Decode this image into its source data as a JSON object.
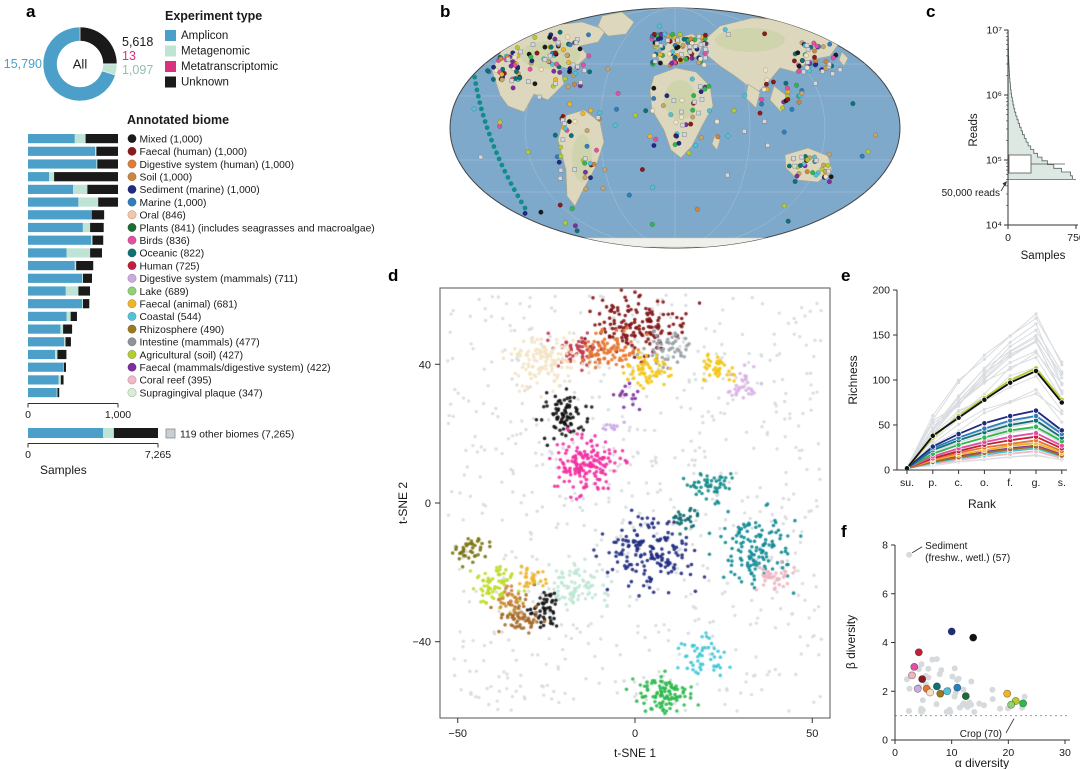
{
  "figure": {
    "panel_letters": {
      "a": "a",
      "b": "b",
      "c": "c",
      "d": "d",
      "e": "e",
      "f": "f"
    }
  },
  "chart_data": [
    {
      "id": "a-donut",
      "type": "pie",
      "center_label": "All",
      "legend_title": "Experiment type",
      "slices": [
        {
          "label": "Unknown",
          "value": 5618,
          "display": "5,618",
          "color": "#1a1a1a"
        },
        {
          "label": "Metatranscriptomic",
          "value": 13,
          "display": "13",
          "color": "#d6327e"
        },
        {
          "label": "Metagenomic",
          "value": 1097,
          "display": "1,097",
          "color": "#bfe3d5"
        },
        {
          "label": "Amplicon",
          "value": 15790,
          "display": "15,790",
          "color": "#4c9fc8"
        }
      ],
      "legend": [
        {
          "label": "Amplicon",
          "color": "#4c9fc8"
        },
        {
          "label": "Metagenomic",
          "color": "#bfe3d5"
        },
        {
          "label": "Metatranscriptomic",
          "color": "#d6327e"
        },
        {
          "label": "Unknown",
          "color": "#1a1a1a"
        }
      ]
    },
    {
      "id": "a-biomes",
      "type": "bar",
      "title": "Annotated biome",
      "stack_order": [
        "Amplicon",
        "Metagenomic",
        "Unknown"
      ],
      "stack_colors": [
        "#4c9fc8",
        "#bfe3d5",
        "#1a1a1a"
      ],
      "xlim": [
        0,
        1000
      ],
      "x_ticks": [
        "0",
        "1,000"
      ],
      "xlabel": "Samples",
      "items": [
        {
          "label": "Mixed (1,000)",
          "color": "#1a1a1a",
          "total": 1000,
          "segments": [
            520,
            120,
            360
          ]
        },
        {
          "label": "Faecal (human) (1,000)",
          "color": "#8b1a1a",
          "total": 1000,
          "segments": [
            745,
            15,
            240
          ]
        },
        {
          "label": "Digestive system (human) (1,000)",
          "color": "#e07b39",
          "total": 1000,
          "segments": [
            760,
            10,
            230
          ]
        },
        {
          "label": "Soil (1,000)",
          "color": "#cd853f",
          "total": 1000,
          "segments": [
            235,
            55,
            710
          ]
        },
        {
          "label": "Sediment (marine) (1,000)",
          "color": "#1f2a80",
          "total": 1000,
          "segments": [
            500,
            160,
            340
          ]
        },
        {
          "label": "Marine (1,000)",
          "color": "#2e7ebc",
          "total": 1000,
          "segments": [
            560,
            220,
            220
          ]
        },
        {
          "label": "Oral (846)",
          "color": "#f5c6a5",
          "total": 846,
          "segments": [
            700,
            6,
            140
          ]
        },
        {
          "label": "Plants (841) (includes seagrasses and macroalgae)",
          "color": "#1e6b35",
          "total": 841,
          "segments": [
            610,
            80,
            151
          ]
        },
        {
          "label": "Birds (836)",
          "color": "#e44fa3",
          "total": 836,
          "segments": [
            700,
            16,
            120
          ]
        },
        {
          "label": "Oceanic (822)",
          "color": "#0f7173",
          "total": 822,
          "segments": [
            430,
            260,
            132
          ]
        },
        {
          "label": "Human (725)",
          "color": "#c21f3a",
          "total": 725,
          "segments": [
            520,
            15,
            190
          ]
        },
        {
          "label": "Digestive system (mammals) (711)",
          "color": "#cda9e0",
          "total": 711,
          "segments": [
            600,
            11,
            100
          ]
        },
        {
          "label": "Lake (689)",
          "color": "#8fd175",
          "total": 689,
          "segments": [
            420,
            140,
            129
          ]
        },
        {
          "label": "Faecal (animal) (681)",
          "color": "#f0b429",
          "total": 681,
          "segments": [
            600,
            11,
            70
          ]
        },
        {
          "label": "Coastal (544)",
          "color": "#4fc3d9",
          "total": 544,
          "segments": [
            430,
            44,
            70
          ]
        },
        {
          "label": "Rhizosphere (490)",
          "color": "#9c7a1e",
          "total": 490,
          "segments": [
            360,
            30,
            100
          ]
        },
        {
          "label": "Intestine (mammals) (477)",
          "color": "#8f9499",
          "total": 477,
          "segments": [
            400,
            17,
            60
          ]
        },
        {
          "label": "Agricultural (soil) (427)",
          "color": "#b5cc2e",
          "total": 427,
          "segments": [
            300,
            27,
            100
          ]
        },
        {
          "label": "Faecal (mammals/digestive system) (422)",
          "color": "#7c2fa0",
          "total": 422,
          "segments": [
            390,
            7,
            25
          ]
        },
        {
          "label": "Coral reef (395)",
          "color": "#f2b8c6",
          "total": 395,
          "segments": [
            340,
            25,
            30
          ]
        },
        {
          "label": "Supragingival plaque (347)",
          "color": "#d8efd3",
          "total": 347,
          "segments": [
            320,
            7,
            20
          ]
        }
      ],
      "other": {
        "label": "119 other biomes (7,265)",
        "color": "#c9ced3",
        "total": 7265,
        "segments": [
          4200,
          600,
          2465
        ],
        "xlim": [
          0,
          7265
        ],
        "x_ticks": [
          "0",
          "7,265"
        ]
      }
    },
    {
      "id": "b-map",
      "type": "scatter",
      "subtype": "world-map",
      "description": "Global sample locations coloured by annotated biome; grey squares are other biomes",
      "ocean_color": "#7fa9cb",
      "land_color": "#ddd8bd",
      "dot_colors": [
        "#1f2a80",
        "#0f7173",
        "#2e7ebc",
        "#2eb84d",
        "#c8a36a",
        "#1a1a1a",
        "#e44fa3",
        "#f0b429",
        "#7c2fa0",
        "#f3e3c3",
        "#cd853f",
        "#4fc3d9",
        "#b5cc2e",
        "#8b1a1a"
      ],
      "square_color": "#d4d8dc"
    },
    {
      "id": "c-reads",
      "type": "area",
      "subtype": "histogram-horizontal",
      "ylabel": "Reads",
      "xlabel": "Samples",
      "y_ticks": [
        "10⁷",
        "10⁶",
        "10⁵",
        "10⁴"
      ],
      "x_ticks": [
        "0",
        "750"
      ],
      "y_log_range": [
        4,
        7
      ],
      "x_range": [
        0,
        750
      ],
      "cutoff_log": 4.7,
      "cutoff_label": "50,000 reads",
      "counts_top_to_bottom": [
        2,
        2,
        3,
        3,
        4,
        5,
        6,
        8,
        9,
        11,
        13,
        15,
        18,
        21,
        25,
        29,
        34,
        40,
        47,
        55,
        64,
        74,
        86,
        99,
        113,
        128,
        144,
        161,
        180,
        200,
        222,
        250,
        285,
        325,
        375,
        435,
        505,
        590,
        690,
        710
      ],
      "fill": "#dde8e3",
      "stroke": "#54625f"
    },
    {
      "id": "d-tsne",
      "type": "scatter",
      "xlabel": "t-SNE 1",
      "ylabel": "t-SNE 2",
      "xlim": [
        -55,
        55
      ],
      "ylim": [
        -62,
        62
      ],
      "x_ticks": [
        -50,
        0,
        50
      ],
      "y_ticks": [
        40,
        0,
        -40
      ],
      "x_tick_labels": [
        "−50",
        "0",
        "50"
      ],
      "y_tick_labels": [
        "40",
        "0",
        "−40"
      ],
      "background_color": "#d6dadd",
      "clusters": [
        {
          "color": "#7e1113",
          "x": 0,
          "y": 51,
          "sx": 7,
          "sy": 4,
          "n": 150
        },
        {
          "color": "#c23b4b",
          "x": -17,
          "y": 44,
          "sx": 3,
          "sy": 2.5,
          "n": 60
        },
        {
          "color": "#f3e3c3",
          "x": -26,
          "y": 41,
          "sx": 5,
          "sy": 4,
          "n": 130
        },
        {
          "color": "#e5762e",
          "x": -7,
          "y": 44,
          "sx": 4,
          "sy": 3,
          "n": 85
        },
        {
          "color": "#9aa0a6",
          "x": 9,
          "y": 45,
          "sx": 3.5,
          "sy": 2.5,
          "n": 55
        },
        {
          "color": "#f3c515",
          "x": 4,
          "y": 38,
          "sx": 3,
          "sy": 2.5,
          "n": 60
        },
        {
          "color": "#f3c515",
          "x": 23,
          "y": 39,
          "sx": 2.5,
          "sy": 2,
          "n": 40
        },
        {
          "color": "#d9b3e6",
          "x": 31,
          "y": 34,
          "sx": 2,
          "sy": 2.5,
          "n": 35
        },
        {
          "color": "#7c2fa0",
          "x": -2,
          "y": 31,
          "sx": 2,
          "sy": 2,
          "n": 15
        },
        {
          "color": "#111111",
          "x": -20,
          "y": 25,
          "sx": 3,
          "sy": 3.5,
          "n": 80
        },
        {
          "color": "#f22fa0",
          "x": -14,
          "y": 11,
          "sx": 4.5,
          "sy": 4,
          "n": 160
        },
        {
          "color": "#c9a7e8",
          "x": -6,
          "y": 21,
          "sx": 1.5,
          "sy": 1.5,
          "n": 10
        },
        {
          "color": "#128c8a",
          "x": 21,
          "y": 5,
          "sx": 3,
          "sy": 2.5,
          "n": 50
        },
        {
          "color": "#1f2a80",
          "x": 4,
          "y": -14,
          "sx": 6,
          "sy": 5,
          "n": 160
        },
        {
          "color": "#0f8a96",
          "x": 34,
          "y": -13,
          "sx": 5,
          "sy": 5,
          "n": 130
        },
        {
          "color": "#f0b4c0",
          "x": 39,
          "y": -21,
          "sx": 2.5,
          "sy": 2,
          "n": 35
        },
        {
          "color": "#bfe8d4",
          "x": -17,
          "y": -24,
          "sx": 4,
          "sy": 3,
          "n": 80
        },
        {
          "color": "#111111",
          "x": -25,
          "y": -30,
          "sx": 2.5,
          "sy": 2.5,
          "n": 50
        },
        {
          "color": "#bfdc2e",
          "x": -39,
          "y": -24,
          "sx": 3,
          "sy": 3,
          "n": 75
        },
        {
          "color": "#a66a2a",
          "x": -33,
          "y": -33,
          "sx": 3,
          "sy": 2.5,
          "n": 60
        },
        {
          "color": "#7a7410",
          "x": -46,
          "y": -14,
          "sx": 2.5,
          "sy": 2,
          "n": 40
        },
        {
          "color": "#3ec6d8",
          "x": 19,
          "y": -44,
          "sx": 3,
          "sy": 2.5,
          "n": 50
        },
        {
          "color": "#2eb84d",
          "x": 8,
          "y": -55,
          "sx": 4,
          "sy": 2.5,
          "n": 100
        },
        {
          "color": "#0e6b6b",
          "x": 14,
          "y": -5,
          "sx": 2,
          "sy": 2,
          "n": 25
        },
        {
          "color": "#f0b429",
          "x": -29,
          "y": -22,
          "sx": 2,
          "sy": 2,
          "n": 30
        },
        {
          "color": "#cd853f",
          "x": -36,
          "y": -28,
          "sx": 2,
          "sy": 2,
          "n": 30
        }
      ]
    },
    {
      "id": "e-richness",
      "type": "line",
      "ylabel": "Richness",
      "xlabel": "Rank",
      "categories": [
        "su.",
        "p.",
        "c.",
        "o.",
        "f.",
        "g.",
        "s."
      ],
      "ylim": [
        0,
        200
      ],
      "y_ticks": [
        0,
        50,
        100,
        150,
        200
      ],
      "background_series_count": 35,
      "series": [
        {
          "name": "black",
          "color": "#111111",
          "values": [
            2,
            38,
            58,
            78,
            97,
            110,
            75
          ]
        },
        {
          "name": "yellow-green",
          "color": "#b5cc2e",
          "values": [
            2,
            36,
            60,
            80,
            100,
            113,
            78
          ]
        },
        {
          "name": "navy",
          "color": "#1f2a80",
          "values": [
            2,
            26,
            40,
            52,
            60,
            66,
            44
          ]
        },
        {
          "name": "blue",
          "color": "#2e7ebc",
          "values": [
            2,
            24,
            36,
            46,
            55,
            60,
            40
          ]
        },
        {
          "name": "teal",
          "color": "#0f7173",
          "values": [
            2,
            22,
            33,
            42,
            50,
            55,
            36
          ]
        },
        {
          "name": "green",
          "color": "#2eb84d",
          "values": [
            2,
            18,
            28,
            36,
            44,
            48,
            32
          ]
        },
        {
          "name": "magenta",
          "color": "#e44fa3",
          "values": [
            2,
            15,
            24,
            31,
            37,
            41,
            27
          ]
        },
        {
          "name": "crimson",
          "color": "#c21f3a",
          "values": [
            2,
            13,
            21,
            28,
            33,
            37,
            24
          ]
        },
        {
          "name": "orange",
          "color": "#e5762e",
          "values": [
            2,
            12,
            19,
            25,
            29,
            33,
            21
          ]
        },
        {
          "name": "gold",
          "color": "#f0b429",
          "values": [
            2,
            11,
            17,
            22,
            27,
            30,
            19
          ]
        },
        {
          "name": "brown",
          "color": "#a66a2a",
          "values": [
            2,
            9,
            14,
            19,
            23,
            26,
            16
          ]
        },
        {
          "name": "purple",
          "color": "#7c2fa0",
          "values": [
            2,
            10,
            15,
            20,
            24,
            27,
            17
          ]
        },
        {
          "name": "cyan",
          "color": "#3ec6d8",
          "values": [
            2,
            8,
            13,
            17,
            21,
            24,
            15
          ]
        },
        {
          "name": "pink",
          "color": "#f2b8c6",
          "values": [
            2,
            7,
            11,
            15,
            18,
            21,
            13
          ]
        }
      ]
    },
    {
      "id": "f-diversity",
      "type": "scatter",
      "xlabel": "α diversity",
      "ylabel": "β diversity",
      "xlim": [
        0,
        30
      ],
      "ylim": [
        0,
        8
      ],
      "x_ticks": [
        0,
        10,
        20,
        30
      ],
      "y_ticks": [
        0,
        2,
        4,
        6,
        8
      ],
      "baseline_y": 1,
      "gray_point_count": 48,
      "annotations": [
        {
          "text_lines": [
            "Sediment",
            "(freshw., wetl.) (57)"
          ],
          "point": {
            "x": 2.5,
            "y": 7.6
          }
        },
        {
          "text_lines": [
            "Crop (70)"
          ],
          "point": {
            "x": 21,
            "y": 1.05
          }
        }
      ],
      "points": [
        {
          "color": "#1f2a80",
          "x": 10,
          "y": 4.45
        },
        {
          "color": "#111111",
          "x": 13.8,
          "y": 4.2
        },
        {
          "color": "#c21f3a",
          "x": 4.2,
          "y": 3.6
        },
        {
          "color": "#e44fa3",
          "x": 3.4,
          "y": 3.0
        },
        {
          "color": "#f0b4c0",
          "x": 3.0,
          "y": 2.65
        },
        {
          "color": "#8b1a1a",
          "x": 4.8,
          "y": 2.5
        },
        {
          "color": "#cda9e0",
          "x": 4.0,
          "y": 2.1
        },
        {
          "color": "#0f7173",
          "x": 7.4,
          "y": 2.2
        },
        {
          "color": "#e5762e",
          "x": 5.6,
          "y": 2.1
        },
        {
          "color": "#f3e3c3",
          "x": 6.2,
          "y": 1.95
        },
        {
          "color": "#9c7a1e",
          "x": 8.0,
          "y": 1.9
        },
        {
          "color": "#2e7ebc",
          "x": 11.0,
          "y": 2.15
        },
        {
          "color": "#4fc3d9",
          "x": 9.2,
          "y": 2.0
        },
        {
          "color": "#f0b429",
          "x": 19.8,
          "y": 1.9
        },
        {
          "color": "#b5cc2e",
          "x": 21.3,
          "y": 1.6
        },
        {
          "color": "#2eb84d",
          "x": 22.6,
          "y": 1.5
        },
        {
          "color": "#8fd175",
          "x": 20.5,
          "y": 1.45
        },
        {
          "color": "#1e6b35",
          "x": 12.5,
          "y": 1.8
        }
      ]
    }
  ]
}
